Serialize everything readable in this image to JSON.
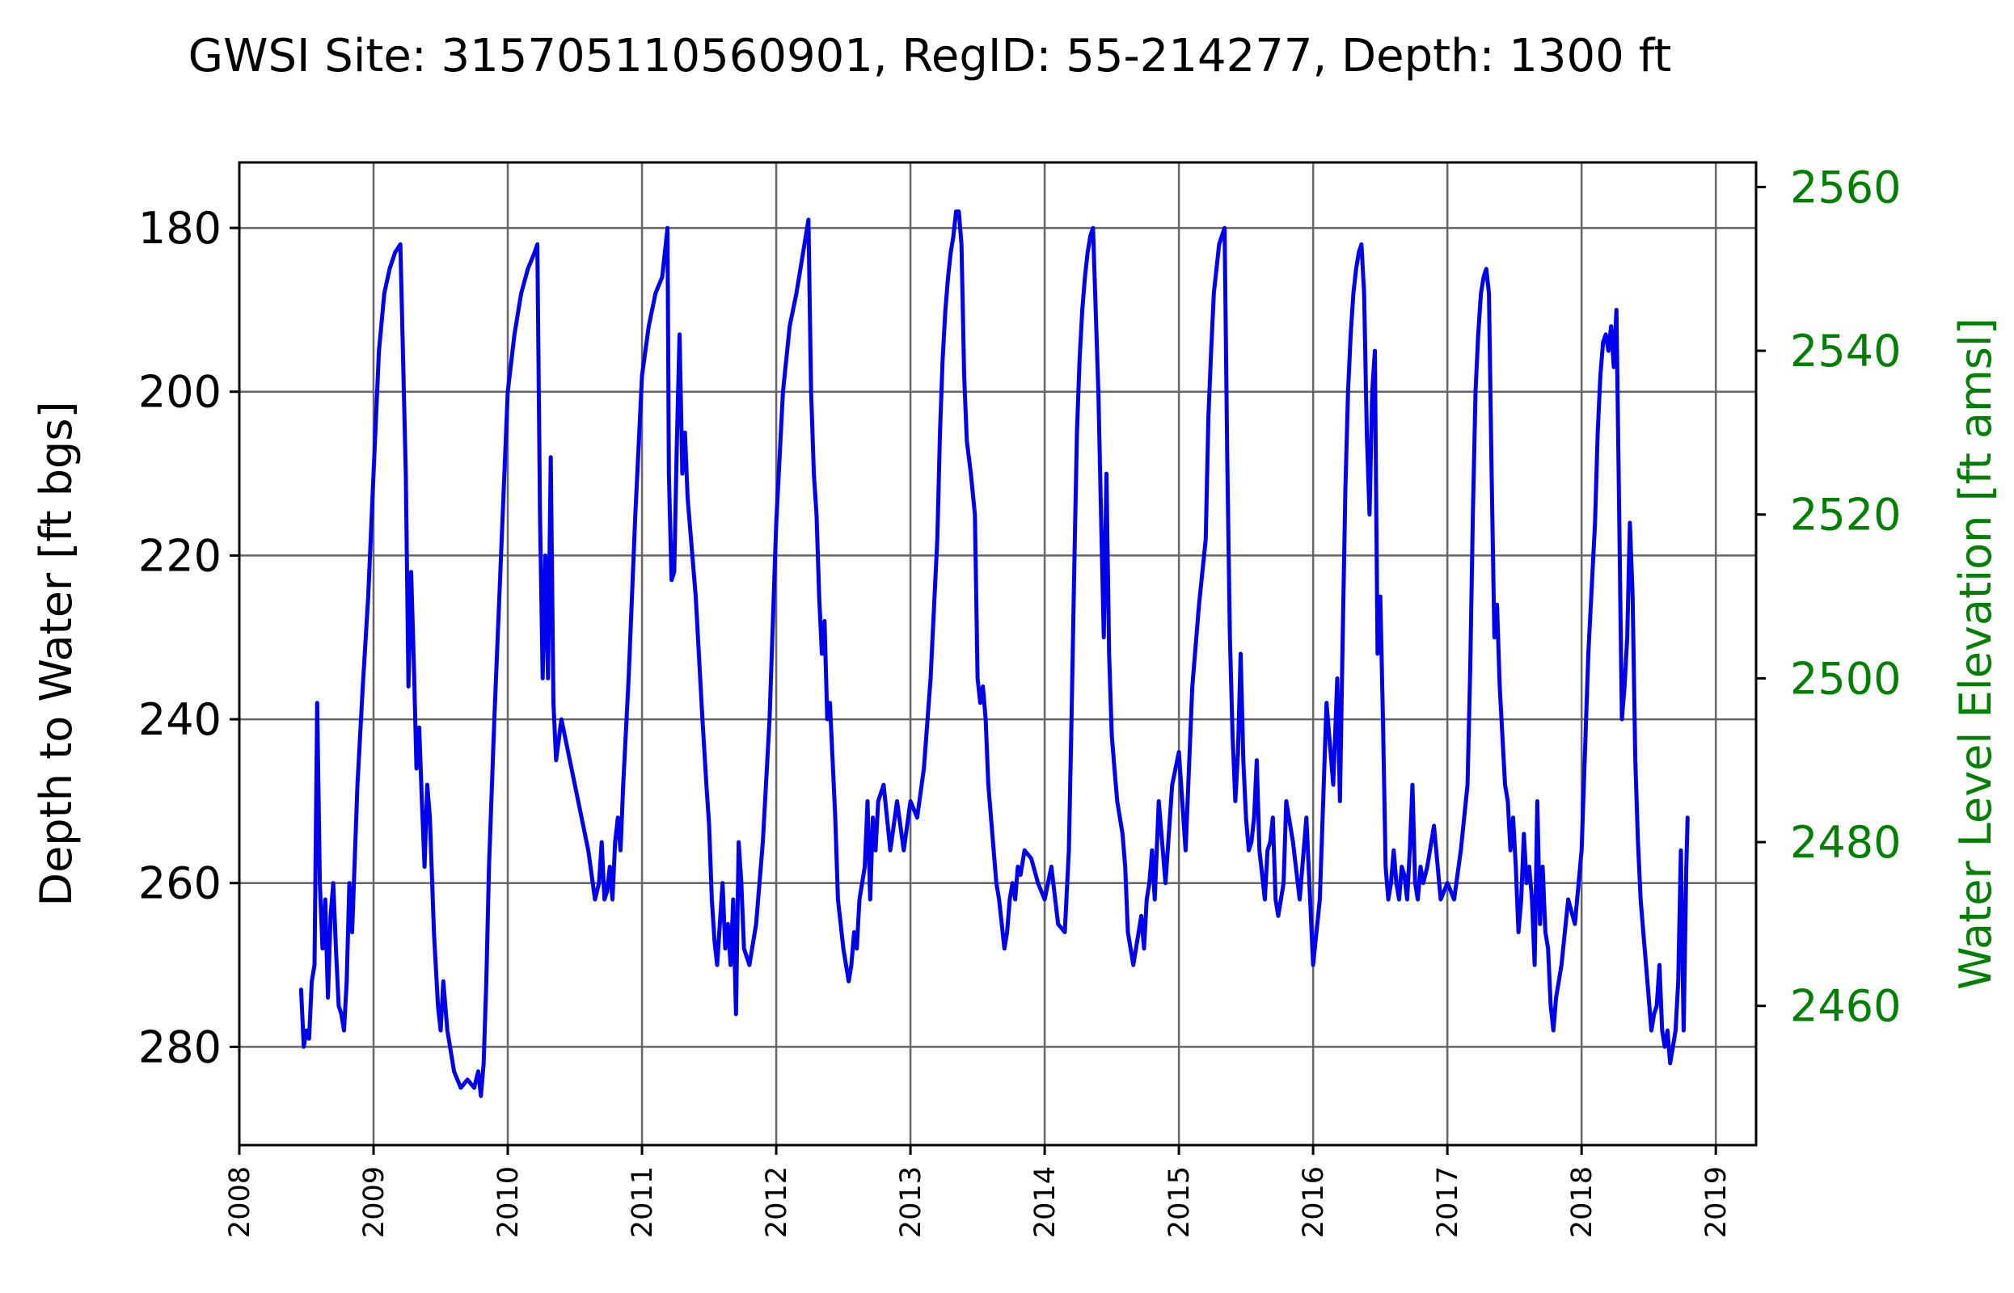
{
  "chart_data": {
    "type": "line",
    "title": "GWSI Site: 315705110560901, RegID: 55-214277, Depth: 1300 ft",
    "ylabel": "Depth to Water [ft bgs]",
    "y2label": "Water Level Elevation [ft amsl]",
    "xlabel": "",
    "xlim": [
      2008,
      2019.3
    ],
    "ylim": [
      292,
      172
    ],
    "y_inverted": true,
    "y2lim": [
      2443,
      2563
    ],
    "x_ticks": [
      "2008",
      "2009",
      "2010",
      "2011",
      "2012",
      "2013",
      "2014",
      "2015",
      "2016",
      "2017",
      "2018",
      "2019"
    ],
    "y_ticks": [
      "180",
      "200",
      "220",
      "240",
      "260",
      "280"
    ],
    "y2_ticks": [
      "2460",
      "2480",
      "2500",
      "2520",
      "2540",
      "2560"
    ],
    "grid": true,
    "colors": {
      "series": "#0000ee",
      "right_axis": "#008000",
      "grid": "#666666"
    },
    "series": [
      {
        "x": [
          2008.46,
          2008.48,
          2008.5,
          2008.52,
          2008.54,
          2008.56,
          2008.58,
          2008.6,
          2008.62,
          2008.64,
          2008.66,
          2008.68,
          2008.7,
          2008.72,
          2008.74,
          2008.76,
          2008.78,
          2008.8,
          2008.82,
          2008.84,
          2008.88,
          2008.92,
          2008.96,
          2009.0,
          2009.04,
          2009.08,
          2009.12,
          2009.16,
          2009.2,
          2009.24,
          2009.26,
          2009.28,
          2009.3,
          2009.32,
          2009.34,
          2009.36,
          2009.38,
          2009.4,
          2009.42,
          2009.45,
          2009.48,
          2009.5,
          2009.52,
          2009.55,
          2009.6,
          2009.65,
          2009.7,
          2009.75,
          2009.78,
          2009.8,
          2009.82,
          2009.84,
          2009.86,
          2009.9,
          2009.95,
          2010.0,
          2010.05,
          2010.1,
          2010.15,
          2010.2,
          2010.22,
          2010.24,
          2010.26,
          2010.28,
          2010.3,
          2010.32,
          2010.34,
          2010.36,
          2010.4,
          2010.5,
          2010.6,
          2010.65,
          2010.68,
          2010.7,
          2010.72,
          2010.74,
          2010.76,
          2010.78,
          2010.8,
          2010.82,
          2010.84,
          2010.86,
          2010.9,
          2010.95,
          2011.0,
          2011.05,
          2011.1,
          2011.15,
          2011.17,
          2011.19,
          2011.2,
          2011.22,
          2011.24,
          2011.26,
          2011.28,
          2011.3,
          2011.32,
          2011.34,
          2011.4,
          2011.45,
          2011.48,
          2011.5,
          2011.52,
          2011.54,
          2011.56,
          2011.58,
          2011.6,
          2011.62,
          2011.64,
          2011.66,
          2011.68,
          2011.7,
          2011.72,
          2011.74,
          2011.76,
          2011.8,
          2011.85,
          2011.9,
          2011.95,
          2012.0,
          2012.05,
          2012.1,
          2012.15,
          2012.18,
          2012.2,
          2012.22,
          2012.24,
          2012.26,
          2012.28,
          2012.3,
          2012.32,
          2012.34,
          2012.36,
          2012.38,
          2012.4,
          2012.42,
          2012.44,
          2012.46,
          2012.48,
          2012.5,
          2012.52,
          2012.54,
          2012.56,
          2012.58,
          2012.6,
          2012.62,
          2012.64,
          2012.66,
          2012.68,
          2012.7,
          2012.72,
          2012.74,
          2012.76,
          2012.8,
          2012.85,
          2012.9,
          2012.95,
          2013.0,
          2013.05,
          2013.1,
          2013.15,
          2013.2,
          2013.22,
          2013.24,
          2013.26,
          2013.28,
          2013.3,
          2013.32,
          2013.34,
          2013.36,
          2013.38,
          2013.4,
          2013.42,
          2013.45,
          2013.48,
          2013.5,
          2013.52,
          2013.54,
          2013.56,
          2013.58,
          2013.6,
          2013.62,
          2013.64,
          2013.66,
          2013.68,
          2013.7,
          2013.72,
          2013.74,
          2013.76,
          2013.78,
          2013.8,
          2013.82,
          2013.85,
          2013.9,
          2013.95,
          2014.0,
          2014.05,
          2014.1,
          2014.15,
          2014.18,
          2014.2,
          2014.22,
          2014.24,
          2014.26,
          2014.28,
          2014.3,
          2014.32,
          2014.34,
          2014.36,
          2014.38,
          2014.4,
          2014.42,
          2014.44,
          2014.46,
          2014.48,
          2014.5,
          2014.52,
          2014.54,
          2014.56,
          2014.58,
          2014.6,
          2014.62,
          2014.64,
          2014.66,
          2014.68,
          2014.7,
          2014.72,
          2014.74,
          2014.76,
          2014.78,
          2014.8,
          2014.82,
          2014.85,
          2014.9,
          2014.95,
          2015.0,
          2015.05,
          2015.1,
          2015.15,
          2015.2,
          2015.22,
          2015.24,
          2015.26,
          2015.28,
          2015.3,
          2015.32,
          2015.34,
          2015.36,
          2015.38,
          2015.4,
          2015.42,
          2015.44,
          2015.46,
          2015.48,
          2015.5,
          2015.52,
          2015.54,
          2015.56,
          2015.58,
          2015.6,
          2015.62,
          2015.64,
          2015.66,
          2015.68,
          2015.7,
          2015.72,
          2015.74,
          2015.76,
          2015.78,
          2015.8,
          2015.85,
          2015.9,
          2015.95,
          2016.0,
          2016.05,
          2016.1,
          2016.15,
          2016.18,
          2016.2,
          2016.22,
          2016.24,
          2016.26,
          2016.28,
          2016.3,
          2016.32,
          2016.34,
          2016.36,
          2016.38,
          2016.4,
          2016.42,
          2016.44,
          2016.46,
          2016.48,
          2016.5,
          2016.52,
          2016.54,
          2016.56,
          2016.58,
          2016.6,
          2016.62,
          2016.64,
          2016.66,
          2016.68,
          2016.7,
          2016.72,
          2016.74,
          2016.76,
          2016.78,
          2016.8,
          2016.82,
          2016.85,
          2016.9,
          2016.95,
          2017.0,
          2017.05,
          2017.1,
          2017.15,
          2017.17,
          2017.19,
          2017.21,
          2017.23,
          2017.25,
          2017.27,
          2017.29,
          2017.31,
          2017.33,
          2017.35,
          2017.37,
          2017.39,
          2017.41,
          2017.43,
          2017.45,
          2017.47,
          2017.49,
          2017.51,
          2017.53,
          2017.55,
          2017.57,
          2017.59,
          2017.61,
          2017.63,
          2017.65,
          2017.67,
          2017.69,
          2017.71,
          2017.73,
          2017.75,
          2017.77,
          2017.79,
          2017.81,
          2017.85,
          2017.9,
          2017.95,
          2018.0,
          2018.05,
          2018.1,
          2018.12,
          2018.14,
          2018.16,
          2018.18,
          2018.2,
          2018.22,
          2018.24,
          2018.26,
          2018.28,
          2018.3,
          2018.32,
          2018.34,
          2018.36,
          2018.38,
          2018.4,
          2018.42,
          2018.44,
          2018.46,
          2018.48,
          2018.5,
          2018.52,
          2018.54,
          2018.56,
          2018.58,
          2018.6,
          2018.62,
          2018.64,
          2018.66,
          2018.68,
          2018.7,
          2018.72,
          2018.74,
          2018.76,
          2018.78,
          2018.79
        ],
        "y": [
          273,
          280,
          278,
          279,
          272,
          270,
          238,
          260,
          268,
          262,
          274,
          264,
          260,
          268,
          275,
          276,
          278,
          272,
          260,
          266,
          248,
          236,
          225,
          210,
          195,
          188,
          185,
          183,
          182,
          210,
          236,
          222,
          233,
          246,
          241,
          250,
          258,
          248,
          252,
          266,
          275,
          278,
          272,
          278,
          283,
          285,
          284,
          285,
          283,
          286,
          282,
          272,
          258,
          240,
          220,
          200,
          193,
          188,
          185,
          183,
          182,
          215,
          235,
          220,
          235,
          208,
          238,
          245,
          240,
          248,
          256,
          262,
          260,
          255,
          262,
          261,
          258,
          262,
          255,
          252,
          256,
          248,
          235,
          215,
          198,
          192,
          188,
          186,
          183,
          180,
          210,
          223,
          222,
          206,
          193,
          210,
          205,
          213,
          225,
          240,
          248,
          253,
          262,
          267,
          270,
          265,
          260,
          268,
          265,
          270,
          262,
          276,
          255,
          260,
          268,
          270,
          265,
          255,
          240,
          216,
          200,
          192,
          188,
          185,
          183,
          181,
          179,
          200,
          210,
          215,
          225,
          232,
          228,
          240,
          238,
          245,
          252,
          262,
          265,
          268,
          270,
          272,
          270,
          266,
          268,
          262,
          260,
          258,
          250,
          262,
          252,
          256,
          250,
          248,
          256,
          250,
          256,
          250,
          252,
          246,
          235,
          218,
          205,
          196,
          190,
          186,
          183,
          181,
          178,
          178,
          182,
          198,
          206,
          210,
          215,
          235,
          238,
          236,
          240,
          248,
          252,
          256,
          260,
          262,
          265,
          268,
          266,
          262,
          260,
          262,
          258,
          259,
          256,
          257,
          260,
          262,
          258,
          265,
          266,
          256,
          240,
          222,
          205,
          196,
          190,
          186,
          183,
          181,
          180,
          190,
          200,
          215,
          230,
          210,
          232,
          242,
          246,
          250,
          252,
          254,
          258,
          266,
          268,
          270,
          268,
          266,
          264,
          268,
          262,
          260,
          256,
          262,
          250,
          260,
          248,
          244,
          256,
          236,
          226,
          218,
          203,
          195,
          188,
          185,
          182,
          181,
          180,
          208,
          230,
          242,
          250,
          244,
          232,
          245,
          252,
          256,
          255,
          252,
          245,
          256,
          259,
          262,
          256,
          255,
          252,
          262,
          264,
          262,
          260,
          250,
          255,
          262,
          252,
          270,
          262,
          238,
          248,
          235,
          250,
          230,
          212,
          200,
          193,
          188,
          185,
          183,
          182,
          188,
          205,
          215,
          200,
          195,
          232,
          225,
          240,
          258,
          262,
          260,
          256,
          260,
          262,
          258,
          259,
          262,
          256,
          248,
          260,
          262,
          258,
          260,
          258,
          253,
          262,
          260,
          262,
          256,
          248,
          234,
          215,
          200,
          193,
          188,
          186,
          185,
          188,
          210,
          230,
          226,
          236,
          242,
          248,
          250,
          256,
          252,
          258,
          266,
          262,
          254,
          260,
          258,
          262,
          270,
          250,
          265,
          258,
          266,
          268,
          275,
          278,
          274,
          270,
          262,
          265,
          256,
          232,
          216,
          205,
          198,
          194,
          193,
          195,
          192,
          197,
          190,
          215,
          240,
          236,
          230,
          216,
          225,
          245,
          255,
          262,
          266,
          270,
          274,
          278,
          276,
          275,
          270,
          278,
          280,
          278,
          282,
          280,
          278,
          272,
          256,
          278,
          258,
          252
        ]
      }
    ]
  }
}
